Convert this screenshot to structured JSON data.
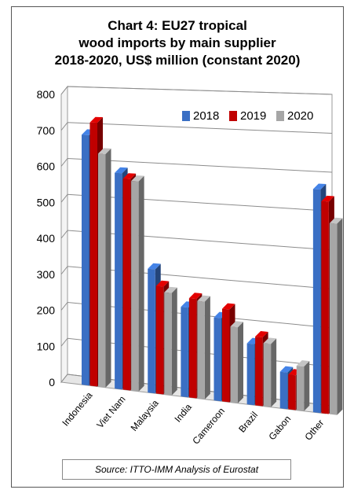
{
  "chart_data": {
    "type": "bar",
    "title_lines": [
      "Chart 4: EU27 tropical",
      "wood imports by main supplier",
      "2018-2020, US$ million (constant 2020)"
    ],
    "categories": [
      "Indonesia",
      "Viet Nam",
      "Malaysia",
      "India",
      "Cameroon",
      "Brazil",
      "Gabon",
      "Other"
    ],
    "series": [
      {
        "name": "2018",
        "color": "#3a6fc4",
        "values": [
          690,
          590,
          335,
          240,
          220,
          160,
          95,
          575
        ]
      },
      {
        "name": "2019",
        "color": "#c00000",
        "values": [
          725,
          575,
          290,
          265,
          245,
          180,
          90,
          545
        ]
      },
      {
        "name": "2020",
        "color": "#a6a6a6",
        "values": [
          640,
          570,
          275,
          260,
          200,
          165,
          115,
          490
        ]
      }
    ],
    "y_ticks": [
      "0",
      "100",
      "200",
      "300",
      "400",
      "500",
      "600",
      "700",
      "800"
    ],
    "ylim": [
      0,
      800
    ],
    "grid": true,
    "legend_position": "top-right",
    "source": "Source: ITTO-IMM Analysis of Eurostat"
  }
}
